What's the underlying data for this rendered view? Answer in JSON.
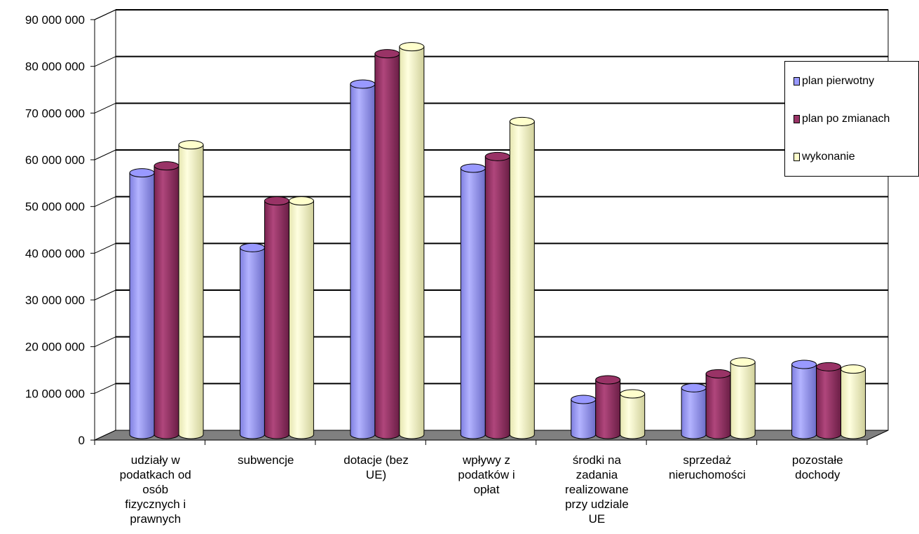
{
  "chart_data": {
    "type": "bar",
    "categories": [
      [
        "udziały w",
        "podatkach od",
        "osób",
        "fizycznych i",
        "prawnych"
      ],
      [
        "subwencje"
      ],
      [
        "dotacje  (bez",
        "UE)"
      ],
      [
        "wpływy z",
        "podatków i",
        "opłat"
      ],
      [
        "środki na",
        "zadania",
        "realizowane",
        "przy udziale",
        "UE"
      ],
      [
        "sprzedaż",
        "nieruchomości"
      ],
      [
        "pozostałe",
        "dochody"
      ]
    ],
    "series": [
      {
        "name": "plan pierwotny",
        "color": "#9999ff",
        "values": [
          56000000,
          40000000,
          75000000,
          57000000,
          7500000,
          10000000,
          15000000
        ]
      },
      {
        "name": "plan po  zmianach",
        "color": "#993366",
        "values": [
          57500000,
          50000000,
          81500000,
          59500000,
          11700000,
          13000000,
          14500000
        ]
      },
      {
        "name": "wykonanie",
        "color": "#ffffcc",
        "values": [
          62000000,
          50000000,
          83000000,
          67000000,
          8700000,
          15500000,
          14000000
        ]
      }
    ],
    "y_ticks": [
      "0",
      "10 000 000",
      "20 000 000",
      "30 000 000",
      "40 000 000",
      "50 000 000",
      "60 000 000",
      "70 000 000",
      "80 000 000",
      "90 000 000"
    ],
    "ylim": [
      0,
      90000000
    ],
    "grid": true,
    "legend_position": "right",
    "style": "3d-cylinder"
  }
}
